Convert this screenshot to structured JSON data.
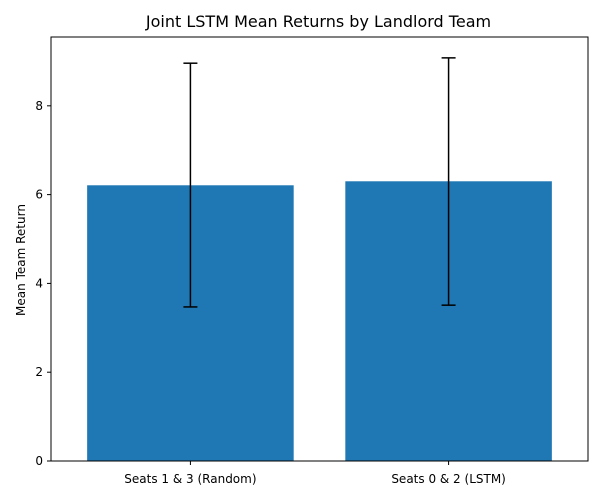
{
  "chart_data": {
    "type": "bar",
    "title": "Joint LSTM Mean Returns by Landlord Team",
    "xlabel": "",
    "ylabel": "Mean Team Return",
    "categories": [
      "Seats 1 & 3 (Random)",
      "Seats 0 & 2 (LSTM)"
    ],
    "values": [
      6.21,
      6.3
    ],
    "error": [
      [
        3.47,
        8.96
      ],
      [
        3.51,
        9.08
      ]
    ],
    "yticks": [
      0,
      2,
      4,
      6,
      8
    ],
    "ylim": [
      0,
      9.55
    ],
    "grid": false,
    "bar_color": "#1f77b4",
    "error_color": "#000000"
  }
}
